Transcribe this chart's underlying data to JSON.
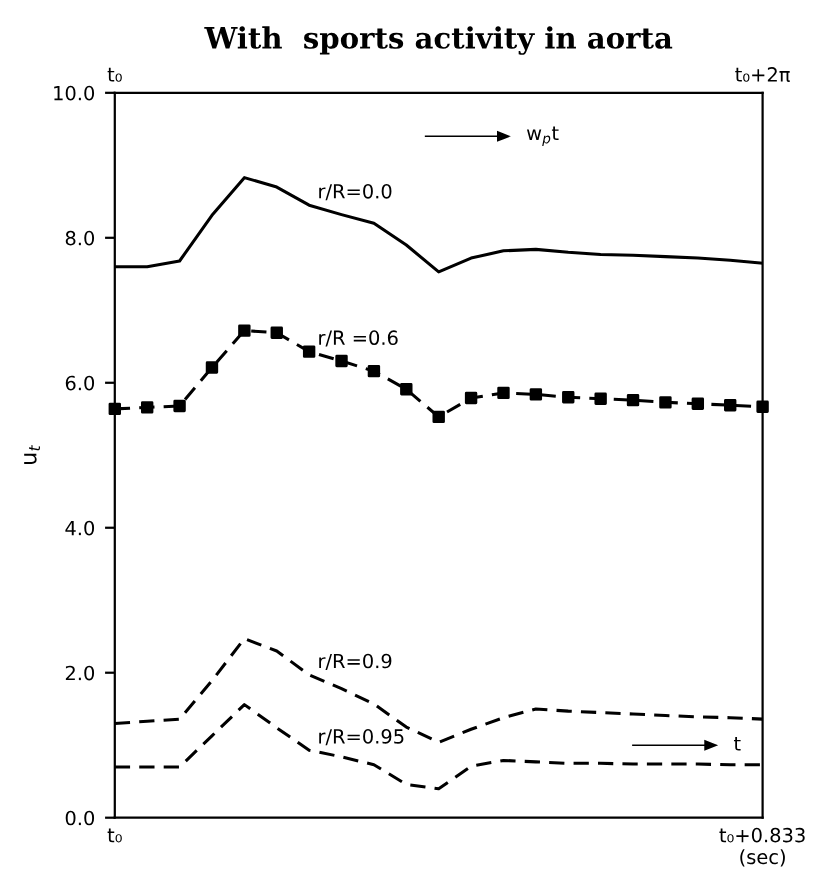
{
  "chart_data": {
    "type": "line",
    "title": "With  sports activity in aorta",
    "ylabel": "u$_{t}$",
    "categories": [
      "t₀",
      null,
      null,
      null,
      null,
      null,
      null,
      null,
      null,
      null,
      null,
      null,
      null,
      null,
      null,
      null,
      null,
      null,
      null,
      null,
      "t₀+0.833\n(sec)"
    ],
    "ylim": [
      0,
      10
    ],
    "yticks": [
      {
        "value": 0,
        "label": "0.0"
      },
      {
        "value": 2,
        "label": "2.0"
      },
      {
        "value": 4,
        "label": "4.0"
      },
      {
        "value": 6,
        "label": "6.0"
      },
      {
        "value": 8,
        "label": "8.0"
      },
      {
        "value": 10,
        "label": "10.0"
      }
    ],
    "grid": false,
    "legend": false,
    "annotations": [
      "w$_{p}$t",
      "t",
      "t₀",
      "t₀+2π"
    ],
    "series": [
      {
        "name": "r/R=0.0",
        "color": "#000000",
        "line_style": "solid",
        "marker": "none",
        "values": [
          7.6,
          7.6,
          7.68,
          8.31,
          8.83,
          8.7,
          8.45,
          8.32,
          8.2,
          7.9,
          7.53,
          7.72,
          7.82,
          7.84,
          7.8,
          7.77,
          7.76,
          7.74,
          7.72,
          7.69,
          7.65
        ]
      },
      {
        "name": "r/R =0.6",
        "color": "#000000",
        "line_style": "dashed",
        "marker": "square",
        "values": [
          5.64,
          5.66,
          5.68,
          6.21,
          6.72,
          6.69,
          6.43,
          6.3,
          6.16,
          5.91,
          5.53,
          5.79,
          5.86,
          5.84,
          5.8,
          5.78,
          5.76,
          5.73,
          5.71,
          5.69,
          5.67
        ]
      },
      {
        "name": "r/R=0.9",
        "color": "#000000",
        "line_style": "dashed",
        "marker": "none",
        "values": [
          1.3,
          1.33,
          1.36,
          1.89,
          2.47,
          2.3,
          1.97,
          1.78,
          1.57,
          1.25,
          1.04,
          1.22,
          1.38,
          1.5,
          1.47,
          1.45,
          1.43,
          1.41,
          1.39,
          1.38,
          1.36
        ]
      },
      {
        "name": "r/R=0.95",
        "color": "#000000",
        "line_style": "dashed",
        "marker": "none",
        "values": [
          0.7,
          0.7,
          0.7,
          1.13,
          1.56,
          1.24,
          0.93,
          0.84,
          0.73,
          0.46,
          0.4,
          0.71,
          0.79,
          0.77,
          0.75,
          0.75,
          0.74,
          0.74,
          0.74,
          0.73,
          0.73
        ]
      }
    ]
  }
}
